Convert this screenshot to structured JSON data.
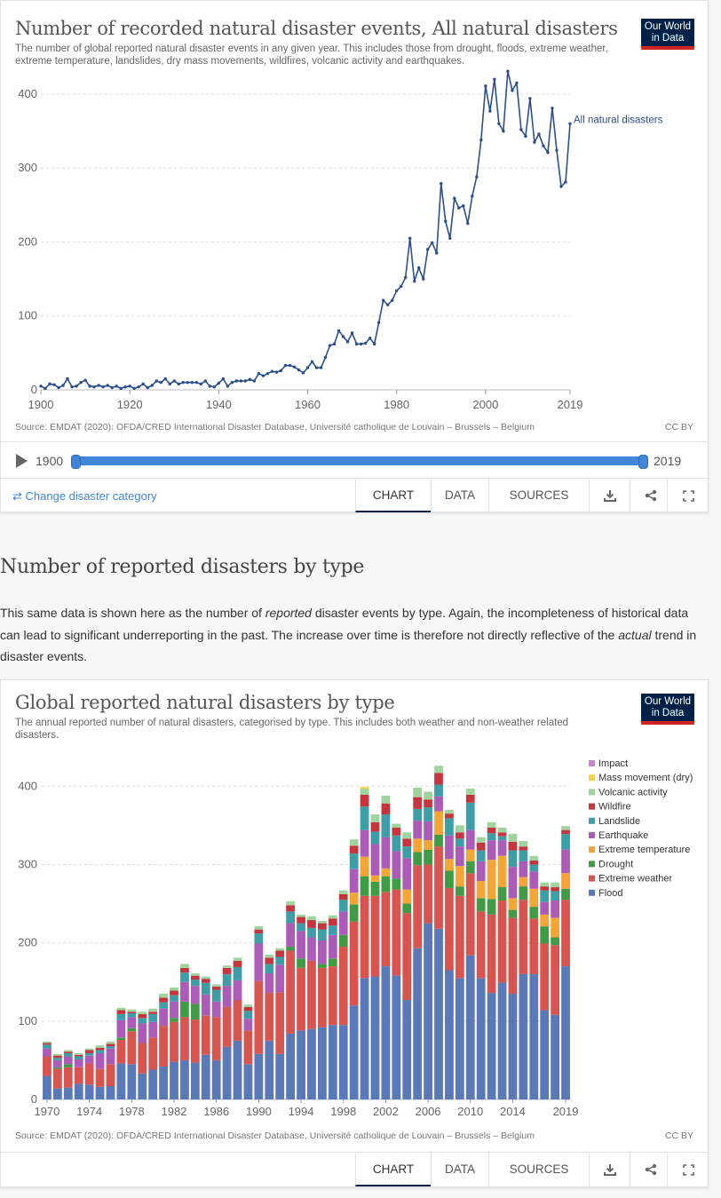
{
  "card1": {
    "title": "Number of recorded natural disaster events, All natural disasters",
    "subtitle": "The number of global reported natural disaster events in any given year. This includes those from drought, floods, extreme weather, extreme temperature, landslides, dry mass movements, wildfires, volcanic activity and earthquakes.",
    "logo_line1": "Our World",
    "logo_line2": "in Data",
    "source": "Source: EMDAT (2020): OFDA/CRED International Disaster Database, Université catholique de Louvain – Brussels – Belgium",
    "license": "CC BY",
    "timeline": {
      "start": "1900",
      "end": "2019"
    },
    "change_link": "⇄ Change disaster category",
    "tabs": [
      "CHART",
      "DATA",
      "SOURCES"
    ],
    "active_tab": "CHART"
  },
  "section": {
    "heading": "Number of reported disasters by type",
    "para_1": "This same data is shown here as the number of ",
    "para_em1": "reported",
    "para_2": " disaster events by type. Again, the incompleteness of historical data can lead to significant underreporting in the past. The increase over time is therefore not directly reflective of the ",
    "para_em2": "actual",
    "para_3": " trend in disaster events."
  },
  "card2": {
    "title": "Global reported natural disasters by type",
    "subtitle": "The annual reported number of natural disasters, categorised by type. This includes both weather and non-weather related disasters.",
    "logo_line1": "Our World",
    "logo_line2": "in Data",
    "source": "Source: EMDAT (2020): OFDA/CRED International Disaster Database, Université catholique de Louvain – Brussels – Belgium",
    "license": "CC BY",
    "tabs": [
      "CHART",
      "DATA",
      "SOURCES"
    ],
    "active_tab": "CHART"
  },
  "chart_data": [
    {
      "type": "line",
      "title": "Number of recorded natural disaster events, All natural disasters",
      "ylim": [
        0,
        430
      ],
      "xlim": [
        1900,
        2019
      ],
      "y_ticks": [
        0,
        100,
        200,
        300,
        400
      ],
      "x_ticks": [
        1900,
        1920,
        1940,
        1960,
        1980,
        2000,
        2019
      ],
      "color": "#2c4f8c",
      "series": [
        {
          "name": "All natural disasters",
          "x": [
            1900,
            1901,
            1902,
            1903,
            1904,
            1905,
            1906,
            1907,
            1908,
            1909,
            1910,
            1911,
            1912,
            1913,
            1914,
            1915,
            1916,
            1917,
            1918,
            1919,
            1920,
            1921,
            1922,
            1923,
            1924,
            1925,
            1926,
            1927,
            1928,
            1929,
            1930,
            1931,
            1932,
            1933,
            1934,
            1935,
            1936,
            1937,
            1938,
            1939,
            1940,
            1941,
            1942,
            1943,
            1944,
            1945,
            1946,
            1947,
            1948,
            1949,
            1950,
            1951,
            1952,
            1953,
            1954,
            1955,
            1956,
            1957,
            1958,
            1959,
            1960,
            1961,
            1962,
            1963,
            1964,
            1965,
            1966,
            1967,
            1968,
            1969,
            1970,
            1971,
            1972,
            1973,
            1974,
            1975,
            1976,
            1977,
            1978,
            1979,
            1980,
            1981,
            1982,
            1983,
            1984,
            1985,
            1986,
            1987,
            1988,
            1989,
            1990,
            1991,
            1992,
            1993,
            1994,
            1995,
            1996,
            1997,
            1998,
            1999,
            2000,
            2001,
            2002,
            2003,
            2004,
            2005,
            2006,
            2007,
            2008,
            2009,
            2010,
            2011,
            2012,
            2013,
            2014,
            2015,
            2016,
            2017,
            2018,
            2019
          ],
          "values": [
            5,
            2,
            8,
            7,
            3,
            6,
            15,
            4,
            5,
            10,
            13,
            5,
            4,
            6,
            4,
            6,
            3,
            5,
            2,
            4,
            5,
            2,
            4,
            8,
            3,
            6,
            12,
            10,
            15,
            8,
            12,
            8,
            10,
            10,
            10,
            10,
            8,
            12,
            5,
            4,
            9,
            15,
            5,
            10,
            12,
            12,
            12,
            14,
            12,
            22,
            19,
            22,
            25,
            24,
            26,
            33,
            33,
            31,
            27,
            23,
            30,
            38,
            30,
            30,
            44,
            60,
            62,
            80,
            72,
            65,
            77,
            62,
            62,
            63,
            70,
            62,
            91,
            121,
            115,
            121,
            134,
            140,
            152,
            205,
            147,
            165,
            150,
            190,
            199,
            185,
            279,
            228,
            205,
            259,
            246,
            249,
            225,
            262,
            288,
            338,
            411,
            377,
            420,
            360,
            350,
            431,
            405,
            415,
            352,
            343,
            394,
            335,
            346,
            330,
            321,
            381,
            324,
            275,
            281,
            360
          ]
        }
      ]
    },
    {
      "type": "bar",
      "stacked": true,
      "title": "Global reported natural disasters by type",
      "ylim": [
        0,
        440
      ],
      "y_ticks": [
        0,
        100,
        200,
        300,
        400
      ],
      "x_tick_labels": [
        "1970",
        "1974",
        "1978",
        "1982",
        "1986",
        "1990",
        "1994",
        "1998",
        "2002",
        "2006",
        "2010",
        "2014",
        "2019"
      ],
      "categories": [
        "1970",
        "1971",
        "1972",
        "1973",
        "1974",
        "1975",
        "1976",
        "1977",
        "1978",
        "1979",
        "1980",
        "1981",
        "1982",
        "1983",
        "1984",
        "1985",
        "1986",
        "1987",
        "1988",
        "1989",
        "1990",
        "1991",
        "1992",
        "1993",
        "1994",
        "1995",
        "1996",
        "1997",
        "1998",
        "1999",
        "2000",
        "2001",
        "2002",
        "2003",
        "2004",
        "2005",
        "2006",
        "2007",
        "2008",
        "2009",
        "2010",
        "2011",
        "2012",
        "2013",
        "2014",
        "2015",
        "2016",
        "2017",
        "2018",
        "2019"
      ],
      "series": [
        {
          "name": "Flood",
          "color": "#5a79b8",
          "values": [
            30,
            14,
            15,
            20,
            19,
            16,
            17,
            46,
            45,
            33,
            38,
            42,
            48,
            50,
            47,
            57,
            50,
            67,
            75,
            45,
            58,
            75,
            58,
            84,
            88,
            90,
            92,
            95,
            95,
            120,
            155,
            157,
            170,
            158,
            127,
            193,
            225,
            218,
            165,
            155,
            184,
            155,
            136,
            149,
            135,
            160,
            160,
            114,
            108,
            170
          ]
        },
        {
          "name": "Extreme weather",
          "color": "#d9534f",
          "values": [
            25,
            25,
            26,
            21,
            27,
            23,
            28,
            30,
            42,
            39,
            41,
            52,
            51,
            55,
            55,
            50,
            55,
            51,
            52,
            43,
            93,
            61,
            79,
            106,
            80,
            87,
            76,
            75,
            100,
            107,
            105,
            103,
            95,
            110,
            111,
            106,
            75,
            105,
            105,
            105,
            105,
            85,
            100,
            105,
            97,
            95,
            71,
            85,
            89,
            85
          ]
        },
        {
          "name": "Drought",
          "color": "#3f9b44",
          "values": [
            0,
            2,
            4,
            0,
            0,
            0,
            0,
            3,
            4,
            0,
            0,
            0,
            5,
            20,
            20,
            0,
            0,
            0,
            0,
            0,
            0,
            0,
            0,
            5,
            12,
            0,
            5,
            10,
            15,
            22,
            25,
            18,
            20,
            14,
            12,
            17,
            19,
            15,
            22,
            12,
            15,
            17,
            20,
            17,
            10,
            17,
            15,
            22,
            10,
            14
          ]
        },
        {
          "name": "Extreme temperature",
          "color": "#f4a534",
          "values": [
            0,
            0,
            0,
            0,
            0,
            0,
            0,
            0,
            0,
            0,
            0,
            0,
            0,
            0,
            0,
            0,
            0,
            0,
            0,
            0,
            0,
            0,
            0,
            0,
            0,
            0,
            0,
            0,
            0,
            15,
            25,
            8,
            10,
            0,
            18,
            17,
            12,
            30,
            15,
            26,
            15,
            22,
            50,
            40,
            15,
            12,
            23,
            15,
            25,
            20
          ]
        },
        {
          "name": "Earthquake",
          "color": "#ad5bb8",
          "values": [
            10,
            9,
            10,
            10,
            10,
            20,
            20,
            22,
            14,
            25,
            20,
            22,
            21,
            25,
            23,
            27,
            20,
            27,
            25,
            15,
            48,
            25,
            35,
            30,
            35,
            30,
            30,
            30,
            30,
            30,
            34,
            40,
            40,
            35,
            40,
            23,
            24,
            19,
            30,
            25,
            25,
            25,
            25,
            20,
            40,
            20,
            22,
            16,
            22,
            30
          ]
        },
        {
          "name": "Landslide",
          "color": "#3d9ea8",
          "values": [
            5,
            3,
            4,
            4,
            3,
            4,
            3,
            8,
            5,
            7,
            10,
            8,
            8,
            12,
            8,
            15,
            15,
            15,
            17,
            10,
            13,
            12,
            10,
            15,
            10,
            12,
            14,
            12,
            15,
            20,
            30,
            16,
            29,
            20,
            15,
            15,
            18,
            15,
            22,
            10,
            35,
            14,
            9,
            5,
            21,
            14,
            9,
            15,
            12,
            20
          ]
        },
        {
          "name": "Wildfire",
          "color": "#c8343b",
          "values": [
            2,
            3,
            2,
            2,
            4,
            3,
            3,
            5,
            2,
            5,
            3,
            6,
            6,
            6,
            5,
            5,
            4,
            8,
            8,
            5,
            5,
            8,
            8,
            8,
            8,
            10,
            8,
            9,
            7,
            10,
            15,
            12,
            14,
            10,
            10,
            15,
            10,
            15,
            6,
            8,
            10,
            10,
            7,
            5,
            11,
            5,
            5,
            5,
            5,
            5
          ]
        },
        {
          "name": "Volcanic activity",
          "color": "#9fd49c",
          "values": [
            2,
            2,
            2,
            2,
            2,
            3,
            3,
            3,
            3,
            3,
            4,
            5,
            4,
            5,
            3,
            3,
            3,
            3,
            4,
            3,
            4,
            4,
            3,
            5,
            3,
            5,
            3,
            4,
            5,
            8,
            8,
            10,
            10,
            5,
            8,
            12,
            10,
            9,
            5,
            9,
            8,
            7,
            7,
            6,
            10,
            7,
            6,
            5,
            6,
            5
          ]
        },
        {
          "name": "Mass movement (dry)",
          "color": "#f5d342",
          "values": [
            0,
            0,
            0,
            0,
            0,
            0,
            0,
            0,
            0,
            0,
            0,
            0,
            0,
            0,
            0,
            0,
            0,
            0,
            0,
            0,
            0,
            0,
            0,
            0,
            0,
            0,
            0,
            0,
            0,
            0,
            2,
            0,
            0,
            0,
            0,
            0,
            0,
            0,
            0,
            0,
            0,
            0,
            0,
            0,
            0,
            0,
            0,
            0,
            0,
            0
          ]
        },
        {
          "name": "Impact",
          "color": "#c784cb",
          "values": [
            0,
            0,
            0,
            0,
            0,
            0,
            0,
            0,
            0,
            0,
            0,
            0,
            0,
            0,
            0,
            0,
            0,
            0,
            0,
            0,
            0,
            0,
            0,
            0,
            0,
            0,
            0,
            0,
            0,
            0,
            0,
            0,
            0,
            0,
            0,
            0,
            0,
            0,
            0,
            0,
            0,
            0,
            0,
            0,
            0,
            0,
            0,
            0,
            0,
            0
          ]
        }
      ]
    }
  ]
}
